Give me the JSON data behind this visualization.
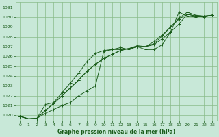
{
  "title": "Graphe pression niveau de la mer (hPa)",
  "bg_color": "#c8e8d8",
  "grid_color": "#88bb88",
  "line_color": "#1a5c1a",
  "ylim": [
    1019.5,
    1031.5
  ],
  "xlim": [
    -0.5,
    23.5
  ],
  "yticks": [
    1020,
    1021,
    1022,
    1023,
    1024,
    1025,
    1026,
    1027,
    1028,
    1029,
    1030,
    1031
  ],
  "xticks": [
    0,
    1,
    2,
    3,
    4,
    5,
    6,
    7,
    8,
    9,
    10,
    11,
    12,
    13,
    14,
    15,
    16,
    17,
    18,
    19,
    20,
    21,
    22,
    23
  ],
  "series": [
    [
      1019.9,
      1019.65,
      1019.7,
      1020.2,
      1020.6,
      1021.0,
      1021.3,
      1022.0,
      1022.5,
      1023.0,
      1026.5,
      1026.7,
      1026.9,
      1026.7,
      1027.0,
      1026.7,
      1026.7,
      1027.2,
      1028.5,
      1030.5,
      1030.1,
      1030.0,
      1030.1,
      1030.2
    ],
    [
      1019.9,
      1019.65,
      1019.7,
      1020.5,
      1021.2,
      1022.0,
      1022.8,
      1023.6,
      1024.5,
      1025.2,
      1025.8,
      1026.2,
      1026.6,
      1026.8,
      1027.0,
      1027.0,
      1027.2,
      1027.8,
      1028.5,
      1029.3,
      1030.3,
      1030.1,
      1030.0,
      1030.2
    ],
    [
      1019.9,
      1019.65,
      1019.7,
      1020.5,
      1021.2,
      1022.0,
      1022.8,
      1023.6,
      1024.5,
      1025.2,
      1025.8,
      1026.2,
      1026.6,
      1026.8,
      1027.0,
      1027.0,
      1027.5,
      1028.2,
      1029.0,
      1029.8,
      1030.3,
      1030.1,
      1030.0,
      1030.2
    ],
    [
      1019.9,
      1019.65,
      1019.7,
      1021.1,
      1021.3,
      1022.3,
      1023.3,
      1024.3,
      1025.5,
      1026.3,
      1026.6,
      1026.7,
      1026.7,
      1026.8,
      1027.1,
      1027.0,
      1027.3,
      1028.1,
      1029.0,
      1029.9,
      1030.5,
      1030.2,
      1030.1,
      1030.2
    ]
  ]
}
